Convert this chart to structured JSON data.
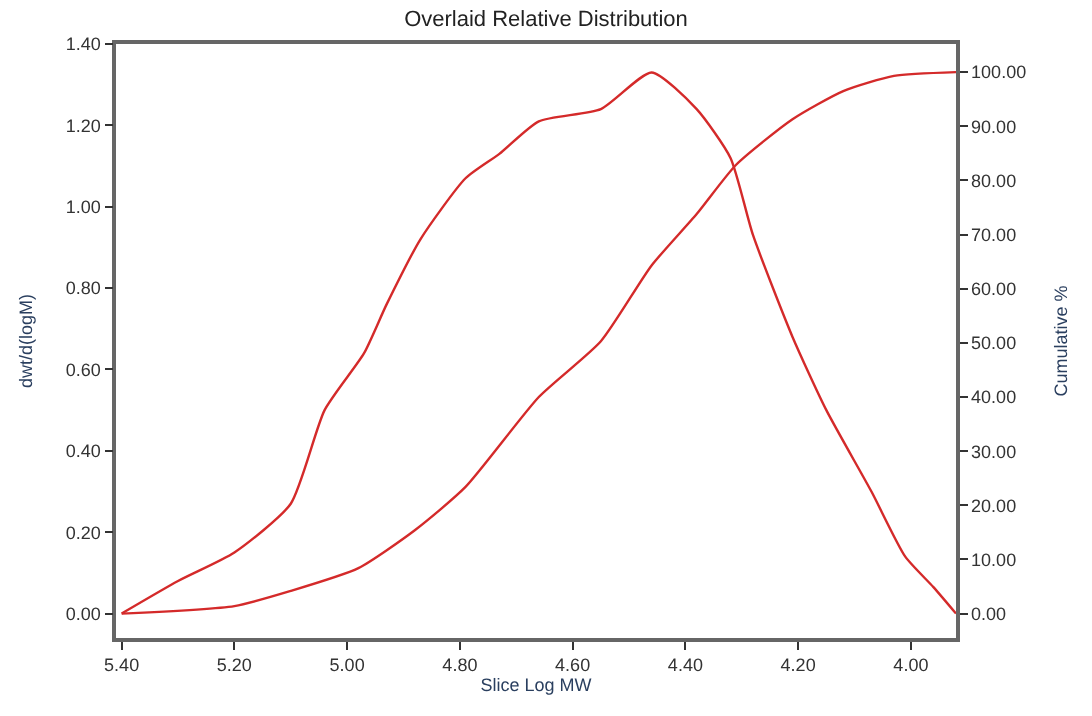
{
  "chart_data": {
    "type": "line",
    "title": "Overlaid Relative Distribution",
    "xlabel": "Slice Log MW",
    "ylabel": "dwt/d(logM)",
    "y2label": "Cumulative %",
    "xlim": [
      5.41,
      3.92
    ],
    "xticks": [
      {
        "value": 5.4,
        "label": "5.40"
      },
      {
        "value": 5.2,
        "label": "5.20"
      },
      {
        "value": 5.0,
        "label": "5.00"
      },
      {
        "value": 4.8,
        "label": "4.80"
      },
      {
        "value": 4.6,
        "label": "4.60"
      },
      {
        "value": 4.4,
        "label": "4.40"
      },
      {
        "value": 4.2,
        "label": "4.20"
      },
      {
        "value": 4.0,
        "label": "4.00"
      }
    ],
    "ylim": [
      -0.06,
      1.4
    ],
    "yticks": [
      {
        "value": 0,
        "label": "0.00"
      },
      {
        "value": 0.2,
        "label": "0.20"
      },
      {
        "value": 0.4,
        "label": "0.40"
      },
      {
        "value": 0.6,
        "label": "0.60"
      },
      {
        "value": 0.8,
        "label": "0.80"
      },
      {
        "value": 1.0,
        "label": "1.00"
      },
      {
        "value": 1.2,
        "label": "1.20"
      },
      {
        "value": 1.4,
        "label": "1.40"
      }
    ],
    "y2lim": [
      -4.5,
      105.2
    ],
    "y2ticks": [
      {
        "value": 0,
        "label": "0.00"
      },
      {
        "value": 10,
        "label": "10.00"
      },
      {
        "value": 20,
        "label": "20.00"
      },
      {
        "value": 30,
        "label": "30.00"
      },
      {
        "value": 40,
        "label": "40.00"
      },
      {
        "value": 50,
        "label": "50.00"
      },
      {
        "value": 60,
        "label": "60.00"
      },
      {
        "value": 70,
        "label": "70.00"
      },
      {
        "value": 80,
        "label": "80.00"
      },
      {
        "value": 90,
        "label": "90.00"
      },
      {
        "value": 100,
        "label": "100.00"
      }
    ],
    "marker": "none",
    "line_style": "solid",
    "series": [
      {
        "color": "#d42a2a",
        "x": [
          5.4,
          5.3,
          5.2,
          5.1,
          5.04,
          4.97,
          4.93,
          4.87,
          4.79,
          4.73,
          4.66,
          4.55,
          4.46,
          4.38,
          4.32,
          4.28,
          4.21,
          4.15,
          4.07,
          4.01,
          3.96,
          3.92
        ],
        "values": [
          0.0,
          0.08,
          0.15,
          0.27,
          0.5,
          0.64,
          0.76,
          0.92,
          1.07,
          1.13,
          1.21,
          1.24,
          1.33,
          1.24,
          1.12,
          0.93,
          0.68,
          0.5,
          0.3,
          0.14,
          0.065,
          0.0
        ]
      },
      {
        "color": "#d42a2a",
        "axis": "y2",
        "x": [
          5.4,
          5.2,
          5.1,
          4.98,
          4.88,
          4.79,
          4.66,
          4.55,
          4.46,
          4.38,
          4.31,
          4.21,
          4.12,
          4.03,
          3.92
        ],
        "values": [
          0.0,
          1.4,
          4.2,
          8.4,
          15.4,
          23.4,
          40,
          50.3,
          64.3,
          73.8,
          82.9,
          91.3,
          96.5,
          99.3,
          100
        ]
      }
    ]
  }
}
